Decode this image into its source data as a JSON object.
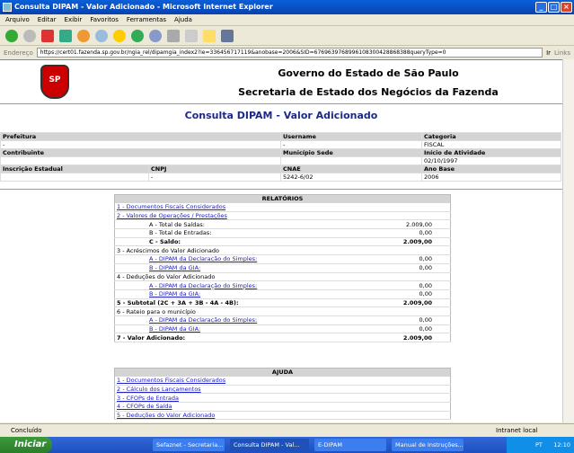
{
  "window": {
    "title": "Consulta DIPAM - Valor Adicionado - Microsoft Internet Explorer"
  },
  "menu": [
    "Arquivo",
    "Editar",
    "Exibir",
    "Favoritos",
    "Ferramentas",
    "Ajuda"
  ],
  "address": {
    "label": "Endereço",
    "url": "https://cert01.fazenda.sp.gov.br/ngia_rel/dipamgia_index2?ie=336456717119&anobase=2006&SID=6769639768996108300428868388queryType=0",
    "go": "Ir",
    "links": "Links"
  },
  "header": {
    "logo": "SP",
    "line1": "Governo do Estado de São Paulo",
    "line2": "Secretaria de Estado dos Negócios da Fazenda",
    "subtitle": "Consulta DIPAM - Valor Adicionado"
  },
  "info": {
    "prefeitura_label": "Prefeitura",
    "prefeitura": "-",
    "username_label": "Username",
    "username": "-",
    "categoria_label": "Categoria",
    "categoria": "FISCAL",
    "contribuinte_label": "Contribuinte",
    "municipio_label": "Município Sede",
    "inicio_label": "Início de Atividade",
    "inicio": "02/10/1997",
    "ie_label": "Inscrição Estadual",
    "cnpj_label": "CNPJ",
    "cnpj": "-",
    "cnae_label": "CNAE",
    "cnae": "5242-6/02",
    "ano_label": "Ano Base",
    "ano": "2006"
  },
  "relatorios": {
    "title": "RELATÓRIOS",
    "rows": [
      {
        "label": "1 - Documentos Fiscais Considerados",
        "value": "",
        "link": true,
        "indent": false,
        "bold": false
      },
      {
        "label": "2 - Valores de Operações / Prestações",
        "value": "",
        "link": true,
        "indent": false,
        "bold": false
      },
      {
        "label": "A - Total de Saídas:",
        "value": "2.009,00",
        "link": false,
        "indent": true,
        "bold": false
      },
      {
        "label": "B - Total de Entradas:",
        "value": "0,00",
        "link": false,
        "indent": true,
        "bold": false
      },
      {
        "label": "C - Saldo:",
        "value": "2.009,00",
        "link": false,
        "indent": true,
        "bold": true
      },
      {
        "label": "3 - Acréscimos do Valor Adicionado",
        "value": "",
        "link": false,
        "indent": false,
        "bold": false
      },
      {
        "label": "A - DIPAM da Declaração do Simples:",
        "value": "0,00",
        "link": true,
        "indent": true,
        "bold": false
      },
      {
        "label": "B - DIPAM da GIA:",
        "value": "0,00",
        "link": true,
        "indent": true,
        "bold": false
      },
      {
        "label": "4 - Deduções do Valor Adicionado",
        "value": "",
        "link": false,
        "indent": false,
        "bold": false
      },
      {
        "label": "A - DIPAM da Declaração do Simples:",
        "value": "0,00",
        "link": true,
        "indent": true,
        "bold": false
      },
      {
        "label": "B - DIPAM da GIA:",
        "value": "0,00",
        "link": true,
        "indent": true,
        "bold": false
      },
      {
        "label": "5 - Subtotal (2C + 3A + 3B - 4A - 4B):",
        "value": "2.009,00",
        "link": false,
        "indent": false,
        "bold": true
      },
      {
        "label": "6 - Rateio para o município",
        "value": "",
        "link": false,
        "indent": false,
        "bold": false
      },
      {
        "label": "A - DIPAM da Declaração do Simples:",
        "value": "0,00",
        "link": true,
        "indent": true,
        "bold": false
      },
      {
        "label": "B - DIPAM da GIA:",
        "value": "0,00",
        "link": true,
        "indent": true,
        "bold": false
      },
      {
        "label": "7 - Valor Adicionado:",
        "value": "2.009,00",
        "link": false,
        "indent": false,
        "bold": true
      }
    ]
  },
  "ajuda": {
    "title": "AJUDA",
    "rows": [
      "1 - Documentos Fiscais Considerados",
      "2 - Cálculo dos Lançamentos",
      "3 - CFOPs de Entrada",
      "4 - CFOPs de Saída",
      "5 - Deduções do Valor Adicionado"
    ]
  },
  "status": {
    "text": "Concluído",
    "zone": "Intranet local"
  },
  "taskbar": {
    "start": "Iniciar",
    "tasks": [
      "Sefaznet - Secretaria...",
      "Consulta DIPAM - Val...",
      "E-DIPAM",
      "Manual de Instruções..."
    ],
    "lang": "PT",
    "clock": "12:10"
  }
}
